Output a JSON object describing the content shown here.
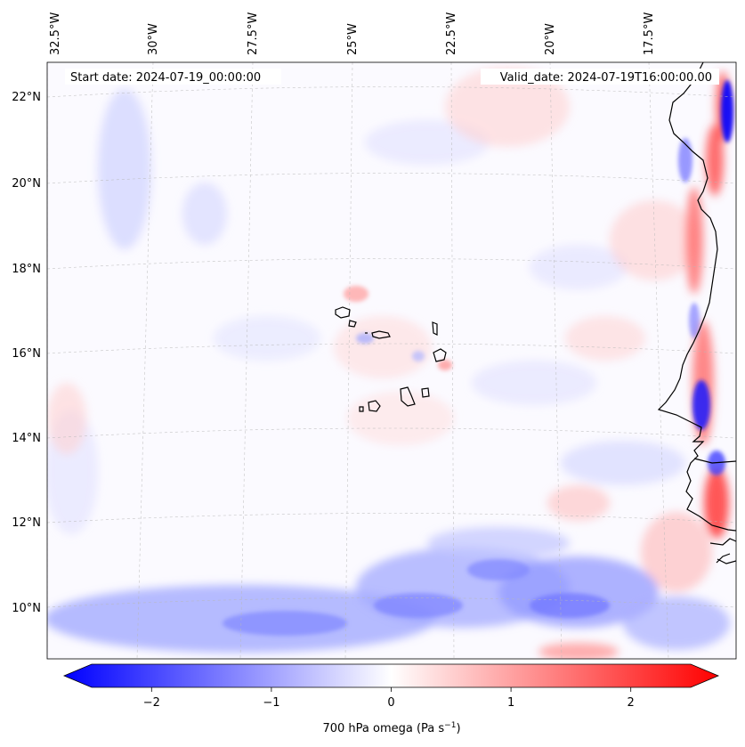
{
  "chart_data": {
    "type": "heatmap",
    "title": "",
    "start_label": "Start date: 2024-07-19_00:00:00",
    "valid_label": "Valid_date: 2024-07-19T16:00:00.00",
    "lon_labels": [
      "32.5°W",
      "30°W",
      "27.5°W",
      "25°W",
      "22.5°W",
      "20°W",
      "17.5°W"
    ],
    "lat_labels": [
      "22°N",
      "20°N",
      "18°N",
      "16°N",
      "14°N",
      "12°N",
      "10°N"
    ],
    "lon_values": [
      -32.5,
      -30,
      -27.5,
      -25,
      -22.5,
      -20,
      -17.5
    ],
    "lat_values": [
      22,
      20,
      18,
      16,
      14,
      12,
      10
    ],
    "lon_range": [
      -32.7,
      -15.2
    ],
    "lat_range": [
      8.8,
      22.8
    ],
    "gridlines": true,
    "colormap": "bwr",
    "vrange": [
      -2.5,
      2.5
    ],
    "colorbar": {
      "label": "700 hPa omega (Pa s",
      "label_sup": "−1",
      "label_end": ")",
      "ticks": [
        -2,
        -1,
        0,
        1,
        2
      ],
      "tick_labels": [
        "−2",
        "−1",
        "0",
        "1",
        "2"
      ],
      "extend": "both"
    },
    "features": [
      {
        "name": "west-african-coast",
        "kind": "coastline"
      },
      {
        "name": "cape-verde-islands",
        "kind": "islands"
      }
    ]
  },
  "colors": {
    "negative": "#0000ff",
    "positive": "#ff0000",
    "neutral": "#ffffff",
    "coast": "#000000"
  }
}
